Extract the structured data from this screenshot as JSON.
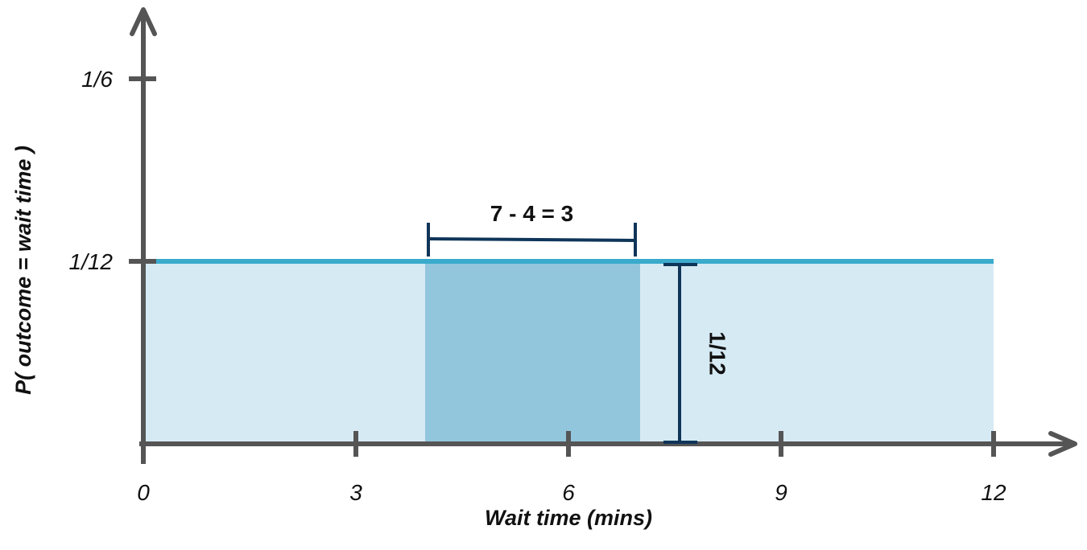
{
  "chart_data": {
    "type": "area",
    "title": "",
    "xlabel": "Wait time (mins)",
    "ylabel": "P( outcome  = wait time )",
    "xlim": [
      0,
      14
    ],
    "ylim": [
      0,
      0.2
    ],
    "x_ticks": [
      {
        "value": 0,
        "label": "0"
      },
      {
        "value": 3,
        "label": "3"
      },
      {
        "value": 6,
        "label": "6"
      },
      {
        "value": 9,
        "label": "9"
      },
      {
        "value": 12,
        "label": "12"
      }
    ],
    "y_ticks": [
      {
        "value": 0.08333,
        "label": "1/12"
      },
      {
        "value": 0.16667,
        "label": "1/6"
      }
    ],
    "distribution": {
      "x_start": 0,
      "x_end": 12,
      "density": 0.08333
    },
    "highlight": {
      "x_start": 4,
      "x_end": 7
    },
    "annotations": {
      "width_label": "7 - 4 = 3",
      "height_label": "1/12"
    },
    "colors": {
      "axis": "#555555",
      "fill": "#d6eaf4",
      "highlight": "#92c6dd",
      "density_line": "#3aabcc",
      "annotation": "#0f3559"
    },
    "grid": false
  }
}
